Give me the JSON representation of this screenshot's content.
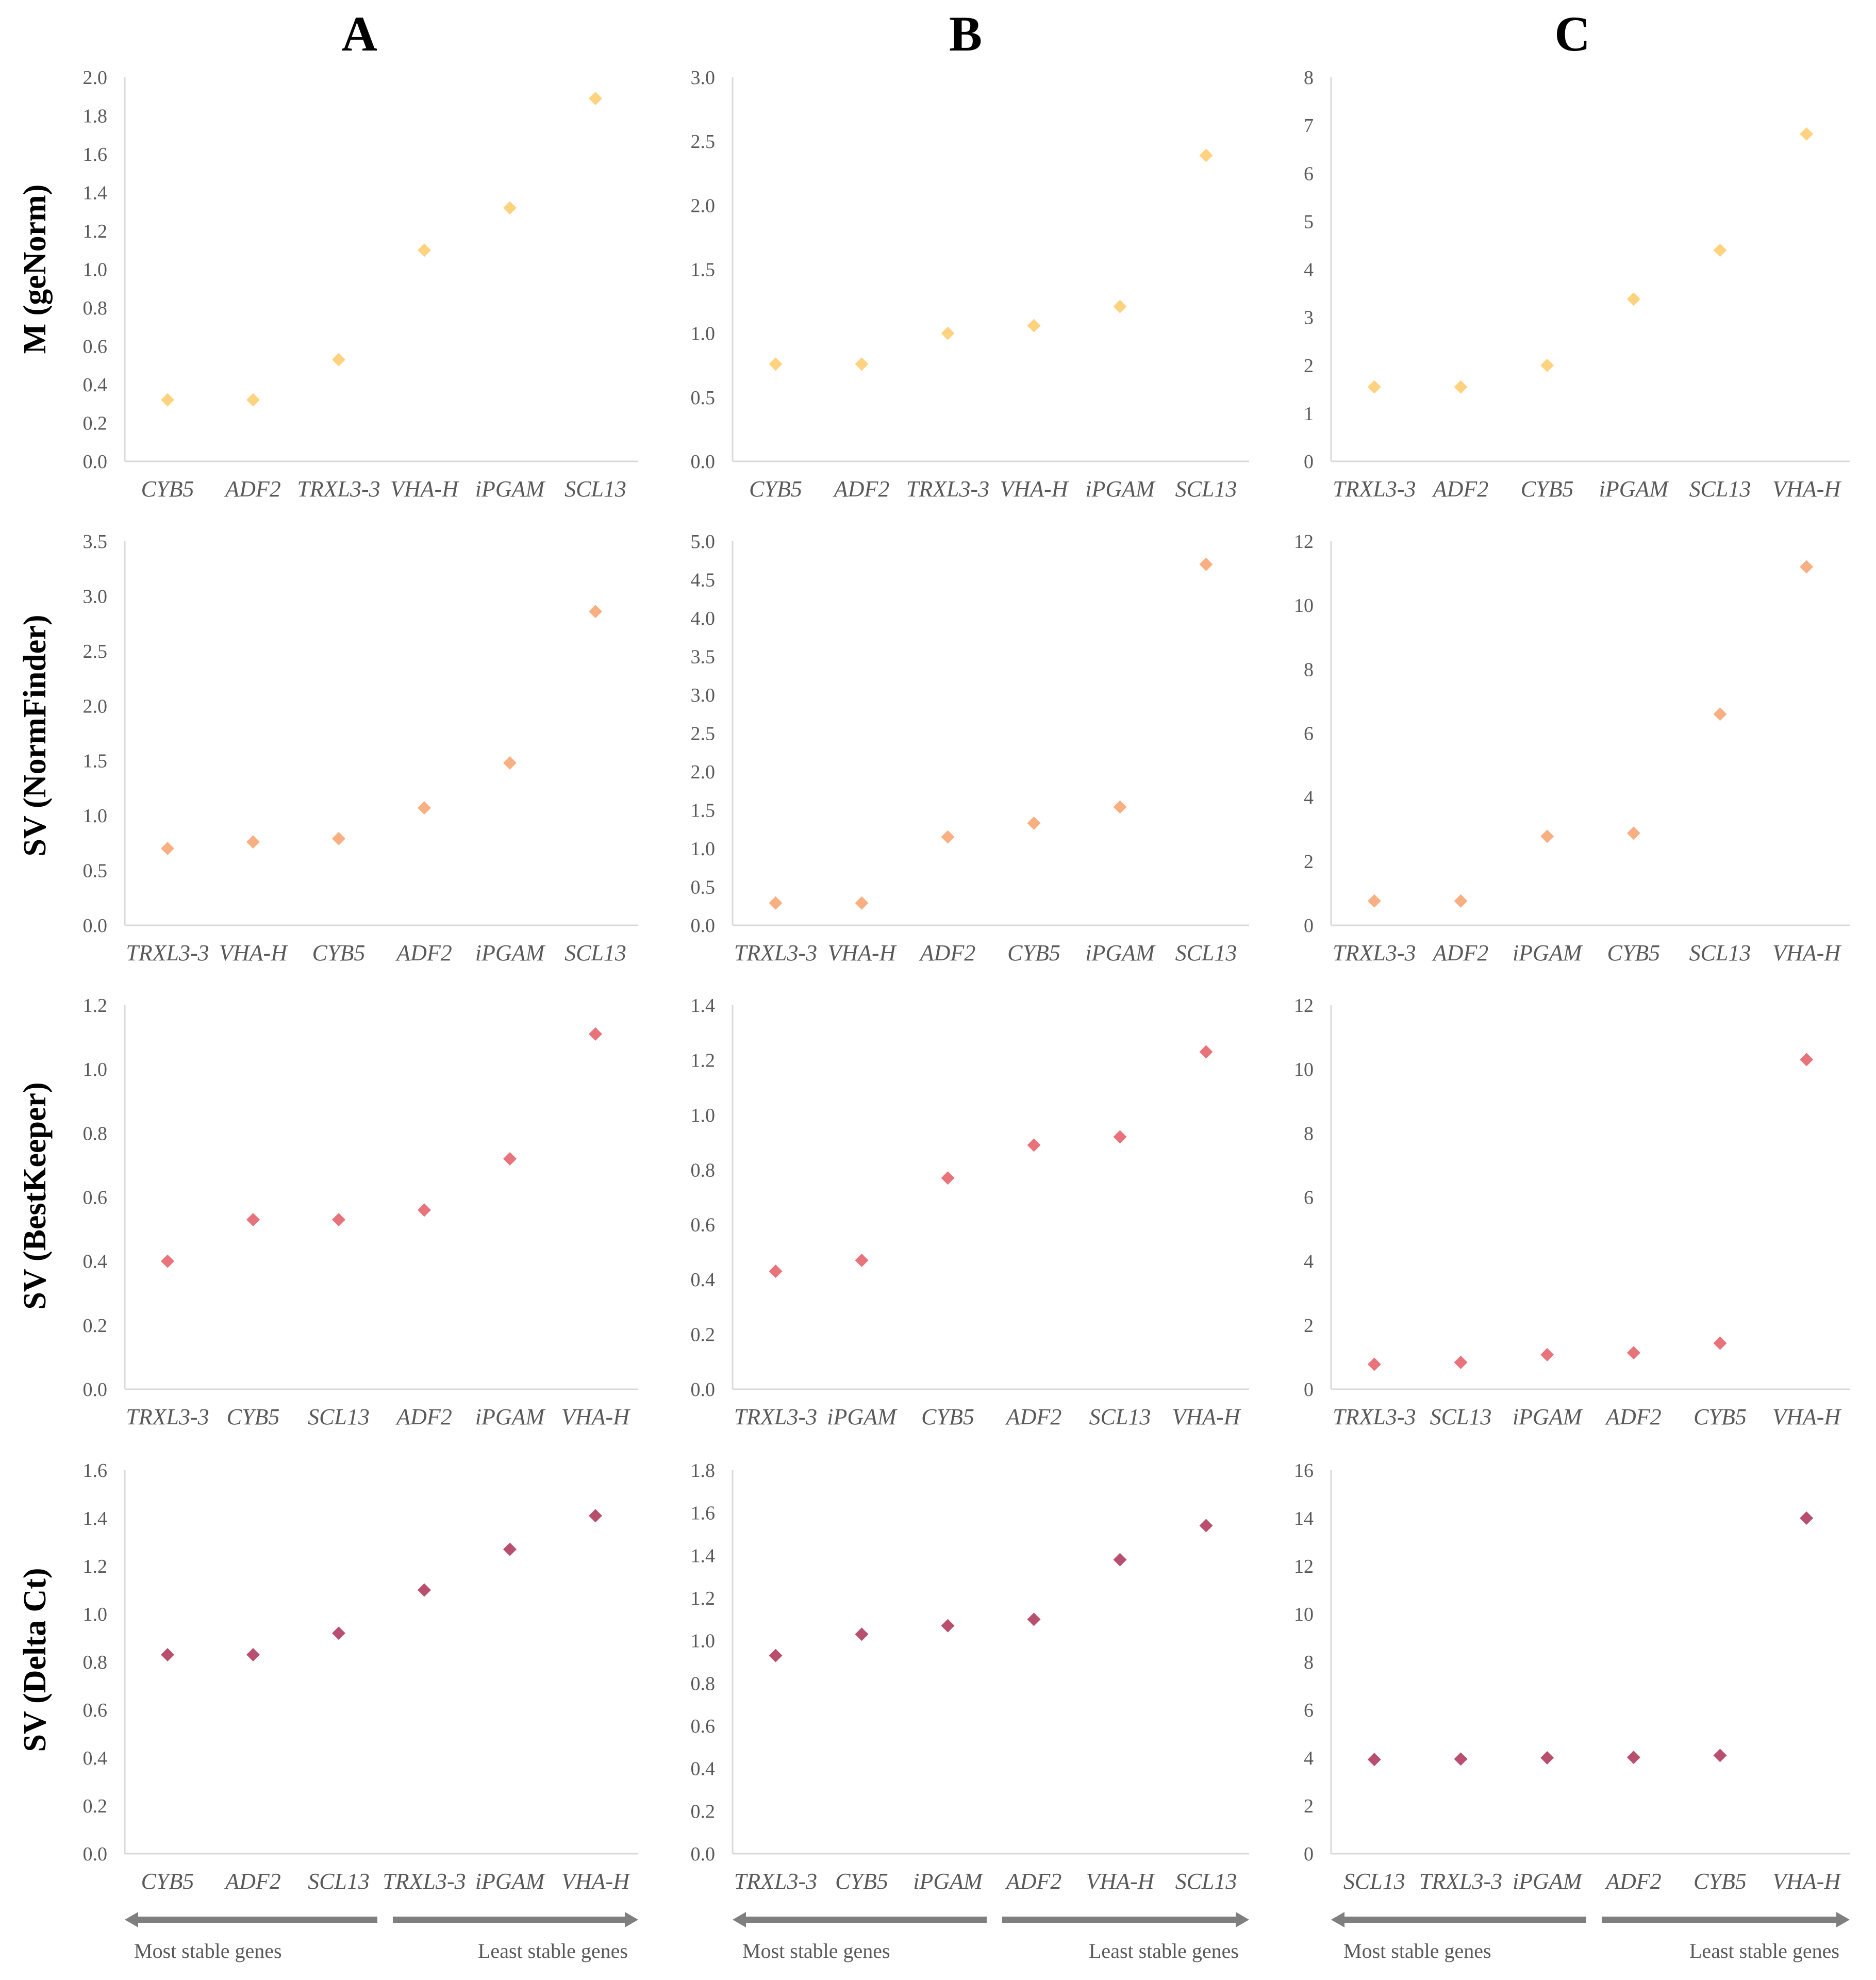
{
  "columns": [
    "A",
    "B",
    "C"
  ],
  "row_labels": [
    "M (geNorm)",
    "SV (NormFinder)",
    "SV (BestKeeper)",
    "SV (Delta Ct)"
  ],
  "footer": {
    "left": "Most stable genes",
    "right": "Least stable genes"
  },
  "colors": {
    "geNorm": "#FFD27F",
    "NormFinder": "#F8B083",
    "BestKeeper": "#E8737A",
    "DeltaCt": "#B94F6E",
    "axis": "#D9D9D9",
    "arrow": "#7F7F7F"
  },
  "chart_data": [
    {
      "type": "scatter",
      "categories": [
        "CYB5",
        "ADF2",
        "TRXL3-3",
        "VHA-H",
        "iPGAM",
        "SCL13"
      ],
      "values": [
        0.32,
        0.32,
        0.53,
        1.1,
        1.32,
        1.89
      ],
      "ylim": [
        0,
        2.0
      ],
      "yticks": [
        "0.0",
        "0.2",
        "0.4",
        "0.6",
        "0.8",
        "1.0",
        "1.2",
        "1.4",
        "1.6",
        "1.8",
        "2.0"
      ]
    },
    {
      "type": "scatter",
      "categories": [
        "CYB5",
        "ADF2",
        "TRXL3-3",
        "VHA-H",
        "iPGAM",
        "SCL13"
      ],
      "values": [
        0.76,
        0.76,
        1.0,
        1.06,
        1.21,
        2.39
      ],
      "ylim": [
        0,
        3.0
      ],
      "yticks": [
        "0.0",
        "0.5",
        "1.0",
        "1.5",
        "2.0",
        "2.5",
        "3.0"
      ]
    },
    {
      "type": "scatter",
      "categories": [
        "TRXL3-3",
        "ADF2",
        "CYB5",
        "iPGAM",
        "SCL13",
        "VHA-H"
      ],
      "values": [
        1.55,
        1.55,
        2.0,
        3.38,
        4.4,
        6.82
      ],
      "ylim": [
        0,
        8
      ],
      "yticks": [
        "0",
        "1",
        "2",
        "3",
        "4",
        "5",
        "6",
        "7",
        "8"
      ]
    },
    {
      "type": "scatter",
      "categories": [
        "TRXL3-3",
        "VHA-H",
        "CYB5",
        "ADF2",
        "iPGAM",
        "SCL13"
      ],
      "values": [
        0.7,
        0.76,
        0.79,
        1.07,
        1.48,
        2.86
      ],
      "ylim": [
        0,
        3.5
      ],
      "yticks": [
        "0.0",
        "0.5",
        "1.0",
        "1.5",
        "2.0",
        "2.5",
        "3.0",
        "3.5"
      ]
    },
    {
      "type": "scatter",
      "categories": [
        "TRXL3-3",
        "VHA-H",
        "ADF2",
        "CYB5",
        "iPGAM",
        "SCL13"
      ],
      "values": [
        0.29,
        0.29,
        1.15,
        1.33,
        1.54,
        4.7
      ],
      "ylim": [
        0,
        5.0
      ],
      "yticks": [
        "0.0",
        "0.5",
        "1.0",
        "1.5",
        "2.0",
        "2.5",
        "3.0",
        "3.5",
        "4.0",
        "4.5",
        "5.0"
      ]
    },
    {
      "type": "scatter",
      "categories": [
        "TRXL3-3",
        "ADF2",
        "iPGAM",
        "CYB5",
        "SCL13",
        "VHA-H"
      ],
      "values": [
        0.76,
        0.76,
        2.78,
        2.88,
        6.6,
        11.2
      ],
      "ylim": [
        0,
        12
      ],
      "yticks": [
        "0",
        "2",
        "4",
        "6",
        "8",
        "10",
        "12"
      ]
    },
    {
      "type": "scatter",
      "categories": [
        "TRXL3-3",
        "CYB5",
        "SCL13",
        "ADF2",
        "iPGAM",
        "VHA-H"
      ],
      "values": [
        0.4,
        0.53,
        0.53,
        0.56,
        0.72,
        1.11
      ],
      "ylim": [
        0,
        1.2
      ],
      "yticks": [
        "0.0",
        "0.2",
        "0.4",
        "0.6",
        "0.8",
        "1.0",
        "1.2"
      ]
    },
    {
      "type": "scatter",
      "categories": [
        "TRXL3-3",
        "iPGAM",
        "CYB5",
        "ADF2",
        "SCL13",
        "VHA-H"
      ],
      "values": [
        0.43,
        0.47,
        0.77,
        0.89,
        0.92,
        1.23
      ],
      "ylim": [
        0,
        1.4
      ],
      "yticks": [
        "0.0",
        "0.2",
        "0.4",
        "0.6",
        "0.8",
        "1.0",
        "1.2",
        "1.4"
      ]
    },
    {
      "type": "scatter",
      "categories": [
        "TRXL3-3",
        "SCL13",
        "iPGAM",
        "ADF2",
        "CYB5",
        "VHA-H"
      ],
      "values": [
        0.78,
        0.84,
        1.08,
        1.14,
        1.44,
        10.3
      ],
      "ylim": [
        0,
        12
      ],
      "yticks": [
        "0",
        "2",
        "4",
        "6",
        "8",
        "10",
        "12"
      ]
    },
    {
      "type": "scatter",
      "categories": [
        "CYB5",
        "ADF2",
        "SCL13",
        "TRXL3-3",
        "iPGAM",
        "VHA-H"
      ],
      "values": [
        0.83,
        0.83,
        0.92,
        1.1,
        1.27,
        1.41
      ],
      "ylim": [
        0,
        1.6
      ],
      "yticks": [
        "0.0",
        "0.2",
        "0.4",
        "0.6",
        "0.8",
        "1.0",
        "1.2",
        "1.4",
        "1.6"
      ]
    },
    {
      "type": "scatter",
      "categories": [
        "TRXL3-3",
        "CYB5",
        "iPGAM",
        "ADF2",
        "VHA-H",
        "SCL13"
      ],
      "values": [
        0.93,
        1.03,
        1.07,
        1.1,
        1.38,
        1.54
      ],
      "ylim": [
        0,
        1.8
      ],
      "yticks": [
        "0.0",
        "0.2",
        "0.4",
        "0.6",
        "0.8",
        "1.0",
        "1.2",
        "1.4",
        "1.6",
        "1.8"
      ]
    },
    {
      "type": "scatter",
      "categories": [
        "SCL13",
        "TRXL3-3",
        "iPGAM",
        "ADF2",
        "CYB5",
        "VHA-H"
      ],
      "values": [
        3.93,
        3.95,
        4.0,
        4.02,
        4.1,
        14.0
      ],
      "ylim": [
        0,
        16
      ],
      "yticks": [
        "0",
        "2",
        "4",
        "6",
        "8",
        "10",
        "12",
        "14",
        "16"
      ]
    }
  ]
}
